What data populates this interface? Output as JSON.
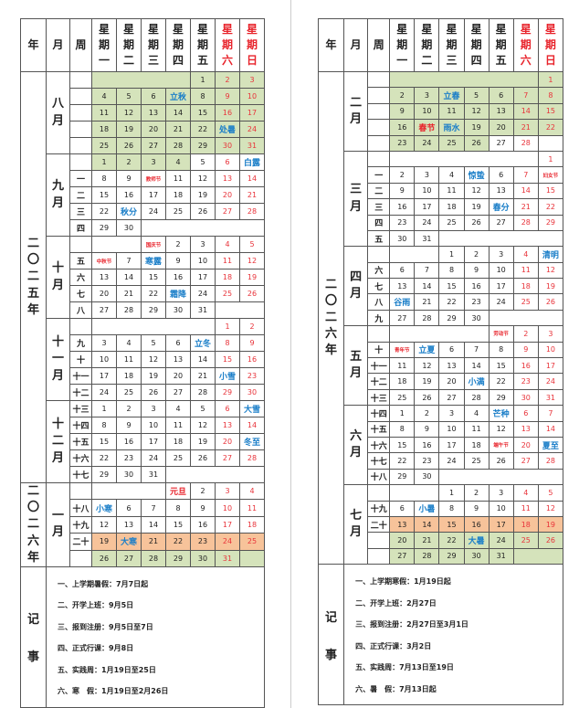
{
  "header": {
    "year": "年",
    "month": "月",
    "week": "周",
    "days": [
      "星期一",
      "星期二",
      "星期三",
      "星期四",
      "星期五",
      "星期六",
      "星期日"
    ]
  },
  "colors": {
    "green": "#d5e3bb",
    "orange": "#f7c39a",
    "red": "#e8333a",
    "blue": "#1a7ec8"
  },
  "left": {
    "year_groups": [
      {
        "label": "二〇二五年",
        "months": [
          {
            "label": "八月",
            "rows": [
              {
                "w": "",
                "d": [
                  null,
                  null,
                  null,
                  null,
                  "1",
                  "2",
                  "3"
                ],
                "bg": "ggggggg"
              },
              {
                "w": "",
                "d": [
                  "4",
                  "5",
                  "6",
                  "立秋",
                  "8",
                  "9",
                  "10"
                ],
                "bg": "ggggggg",
                "st": "...b..."
              },
              {
                "w": "",
                "d": [
                  "11",
                  "12",
                  "13",
                  "14",
                  "15",
                  "16",
                  "17"
                ],
                "bg": "ggggggg"
              },
              {
                "w": "",
                "d": [
                  "18",
                  "19",
                  "20",
                  "21",
                  "22",
                  "处暑",
                  "24"
                ],
                "bg": "ggggggg",
                "st": ".....b."
              },
              {
                "w": "",
                "d": [
                  "25",
                  "26",
                  "27",
                  "28",
                  "29",
                  "30",
                  "31"
                ],
                "bg": "ggggggg"
              }
            ]
          },
          {
            "label": "九月",
            "rows": [
              {
                "w": "",
                "d": [
                  "1",
                  "2",
                  "3",
                  "4",
                  "5",
                  "6",
                  "白露"
                ],
                "bg": "ggggwww",
                "st": "......b"
              },
              {
                "w": "一",
                "d": [
                  "8",
                  "9",
                  "教师节",
                  "11",
                  "12",
                  "13",
                  "14"
                ],
                "st": "..s...."
              },
              {
                "w": "二",
                "d": [
                  "15",
                  "16",
                  "17",
                  "18",
                  "19",
                  "20",
                  "21"
                ]
              },
              {
                "w": "三",
                "d": [
                  "22",
                  "秋分",
                  "24",
                  "25",
                  "26",
                  "27",
                  "28"
                ],
                "st": ".b....."
              },
              {
                "w": "四",
                "d": [
                  "29",
                  "30",
                  null,
                  null,
                  null,
                  null,
                  null
                ]
              }
            ]
          },
          {
            "label": "十月",
            "rows": [
              {
                "w": "",
                "d": [
                  null,
                  null,
                  "国庆节",
                  "2",
                  "3",
                  "4",
                  "5"
                ],
                "st": "..s...."
              },
              {
                "w": "五",
                "d": [
                  "中秋节",
                  "7",
                  "寒露",
                  "9",
                  "10",
                  "11",
                  "12"
                ],
                "st": "s.b...."
              },
              {
                "w": "六",
                "d": [
                  "13",
                  "14",
                  "15",
                  "16",
                  "17",
                  "18",
                  "19"
                ]
              },
              {
                "w": "七",
                "d": [
                  "20",
                  "21",
                  "22",
                  "霜降",
                  "24",
                  "25",
                  "26"
                ],
                "st": "...b..."
              },
              {
                "w": "八",
                "d": [
                  "27",
                  "28",
                  "29",
                  "30",
                  "31",
                  null,
                  null
                ]
              }
            ]
          },
          {
            "label": "十一月",
            "rows": [
              {
                "w": "",
                "d": [
                  null,
                  null,
                  null,
                  null,
                  null,
                  "1",
                  "2"
                ]
              },
              {
                "w": "九",
                "d": [
                  "3",
                  "4",
                  "5",
                  "6",
                  "立冬",
                  "8",
                  "9"
                ],
                "st": "....b.."
              },
              {
                "w": "十",
                "d": [
                  "10",
                  "11",
                  "12",
                  "13",
                  "14",
                  "15",
                  "16"
                ]
              },
              {
                "w": "十一",
                "d": [
                  "17",
                  "18",
                  "19",
                  "20",
                  "21",
                  "小雪",
                  "23"
                ],
                "st": ".....b."
              },
              {
                "w": "十二",
                "d": [
                  "24",
                  "25",
                  "26",
                  "27",
                  "28",
                  "29",
                  "30"
                ]
              }
            ]
          },
          {
            "label": "十二月",
            "rows": [
              {
                "w": "十三",
                "d": [
                  "1",
                  "2",
                  "3",
                  "4",
                  "5",
                  "6",
                  "大雪"
                ],
                "st": "......b"
              },
              {
                "w": "十四",
                "d": [
                  "8",
                  "9",
                  "10",
                  "11",
                  "12",
                  "13",
                  "14"
                ]
              },
              {
                "w": "十五",
                "d": [
                  "15",
                  "16",
                  "17",
                  "18",
                  "19",
                  "20",
                  "冬至"
                ],
                "st": "......b"
              },
              {
                "w": "十六",
                "d": [
                  "22",
                  "23",
                  "24",
                  "25",
                  "26",
                  "27",
                  "28"
                ]
              },
              {
                "w": "十七",
                "d": [
                  "29",
                  "30",
                  "31",
                  null,
                  null,
                  null,
                  null
                ]
              }
            ]
          }
        ]
      },
      {
        "label": "二〇二六年",
        "months": [
          {
            "label": "一月",
            "rows": [
              {
                "w": "",
                "d": [
                  null,
                  null,
                  null,
                  "元旦",
                  "2",
                  "3",
                  "4"
                ],
                "st": "...R..."
              },
              {
                "w": "十八",
                "d": [
                  "小寒",
                  "6",
                  "7",
                  "8",
                  "9",
                  "10",
                  "11"
                ],
                "st": "b......"
              },
              {
                "w": "十九",
                "d": [
                  "12",
                  "13",
                  "14",
                  "15",
                  "16",
                  "17",
                  "18"
                ]
              },
              {
                "w": "二十",
                "d": [
                  "19",
                  "大寒",
                  "21",
                  "22",
                  "23",
                  "24",
                  "25"
                ],
                "bg": "ooooooo",
                "st": ".b....."
              },
              {
                "w": "",
                "d": [
                  "26",
                  "27",
                  "28",
                  "29",
                  "30",
                  "31",
                  null
                ],
                "bg": "ggggggg"
              }
            ]
          }
        ]
      }
    ],
    "notes_label": [
      "记",
      "事"
    ],
    "notes": [
      "一、上学期暑假：7月7日起",
      "二、开学上班：9月5日",
      "三、报到注册：9月5日至7日",
      "四、正式行课：9月8日",
      "五、实践周：1月19日至25日",
      "六、寒　假：1月19日至2月26日"
    ]
  },
  "right": {
    "year_groups": [
      {
        "label": "二〇二六年",
        "months": [
          {
            "label": "二月",
            "rows": [
              {
                "w": "",
                "d": [
                  null,
                  null,
                  null,
                  null,
                  null,
                  null,
                  "1"
                ],
                "bg": "ggggggg"
              },
              {
                "w": "",
                "d": [
                  "2",
                  "3",
                  "立春",
                  "5",
                  "6",
                  "7",
                  "8"
                ],
                "bg": "ggggggg",
                "st": "..b...."
              },
              {
                "w": "",
                "d": [
                  "9",
                  "10",
                  "11",
                  "12",
                  "13",
                  "14",
                  "15"
                ],
                "bg": "ggggggg"
              },
              {
                "w": "",
                "d": [
                  "16",
                  "春节",
                  "雨水",
                  "19",
                  "20",
                  "21",
                  "22"
                ],
                "bg": "ggggggg",
                "st": ".Rb...."
              },
              {
                "w": "",
                "d": [
                  "23",
                  "24",
                  "25",
                  "26",
                  "27",
                  "28",
                  null
                ],
                "bg": "ggggwww"
              }
            ]
          },
          {
            "label": "三月",
            "rows": [
              {
                "w": "",
                "d": [
                  null,
                  null,
                  null,
                  null,
                  null,
                  null,
                  "1"
                ]
              },
              {
                "w": "一",
                "d": [
                  "2",
                  "3",
                  "4",
                  "惊蛰",
                  "6",
                  "7",
                  "妇女节"
                ],
                "st": "...b..s"
              },
              {
                "w": "二",
                "d": [
                  "9",
                  "10",
                  "11",
                  "12",
                  "13",
                  "14",
                  "15"
                ]
              },
              {
                "w": "三",
                "d": [
                  "16",
                  "17",
                  "18",
                  "19",
                  "春分",
                  "21",
                  "22"
                ],
                "st": "....b.."
              },
              {
                "w": "四",
                "d": [
                  "23",
                  "24",
                  "25",
                  "26",
                  "27",
                  "28",
                  "29"
                ]
              },
              {
                "w": "五",
                "d": [
                  "30",
                  "31",
                  null,
                  null,
                  null,
                  null,
                  null
                ]
              }
            ]
          },
          {
            "label": "四月",
            "rows": [
              {
                "w": "",
                "d": [
                  null,
                  null,
                  "1",
                  "2",
                  "3",
                  "4",
                  "清明"
                ],
                "st": "......b"
              },
              {
                "w": "六",
                "d": [
                  "6",
                  "7",
                  "8",
                  "9",
                  "10",
                  "11",
                  "12"
                ]
              },
              {
                "w": "七",
                "d": [
                  "13",
                  "14",
                  "15",
                  "16",
                  "17",
                  "18",
                  "19"
                ]
              },
              {
                "w": "八",
                "d": [
                  "谷雨",
                  "21",
                  "22",
                  "23",
                  "24",
                  "25",
                  "26"
                ],
                "st": "b......"
              },
              {
                "w": "九",
                "d": [
                  "27",
                  "28",
                  "29",
                  "30",
                  null,
                  null,
                  null
                ]
              }
            ]
          },
          {
            "label": "五月",
            "rows": [
              {
                "w": "",
                "d": [
                  null,
                  null,
                  null,
                  null,
                  "劳动节",
                  "2",
                  "3"
                ],
                "st": "....s.."
              },
              {
                "w": "十",
                "d": [
                  "青年节",
                  "立夏",
                  "6",
                  "7",
                  "8",
                  "9",
                  "10"
                ],
                "st": "sb....."
              },
              {
                "w": "十一",
                "d": [
                  "11",
                  "12",
                  "13",
                  "14",
                  "15",
                  "16",
                  "17"
                ]
              },
              {
                "w": "十二",
                "d": [
                  "18",
                  "19",
                  "20",
                  "小满",
                  "22",
                  "23",
                  "24"
                ],
                "st": "...b..."
              },
              {
                "w": "十三",
                "d": [
                  "25",
                  "26",
                  "27",
                  "28",
                  "29",
                  "30",
                  "31"
                ]
              }
            ]
          },
          {
            "label": "六月",
            "rows": [
              {
                "w": "十四",
                "d": [
                  "1",
                  "2",
                  "3",
                  "4",
                  "芒种",
                  "6",
                  "7"
                ],
                "st": "....b.."
              },
              {
                "w": "十五",
                "d": [
                  "8",
                  "9",
                  "10",
                  "11",
                  "12",
                  "13",
                  "14"
                ]
              },
              {
                "w": "十六",
                "d": [
                  "15",
                  "16",
                  "17",
                  "18",
                  "端午节",
                  "20",
                  "夏至"
                ],
                "st": "....s.b"
              },
              {
                "w": "十七",
                "d": [
                  "22",
                  "23",
                  "24",
                  "25",
                  "26",
                  "27",
                  "28"
                ]
              },
              {
                "w": "十八",
                "d": [
                  "29",
                  "30",
                  null,
                  null,
                  null,
                  null,
                  null
                ]
              }
            ]
          },
          {
            "label": "七月",
            "rows": [
              {
                "w": "",
                "d": [
                  null,
                  null,
                  "1",
                  "2",
                  "3",
                  "4",
                  "5"
                ]
              },
              {
                "w": "十九",
                "d": [
                  "6",
                  "小暑",
                  "8",
                  "9",
                  "10",
                  "11",
                  "12"
                ],
                "st": ".b....."
              },
              {
                "w": "二十",
                "d": [
                  "13",
                  "14",
                  "15",
                  "16",
                  "17",
                  "18",
                  "19"
                ],
                "bg": "ooooooo"
              },
              {
                "w": "",
                "d": [
                  "20",
                  "21",
                  "22",
                  "大暑",
                  "24",
                  "25",
                  "26"
                ],
                "bg": "ggggggg",
                "st": "...b..."
              },
              {
                "w": "",
                "d": [
                  "27",
                  "28",
                  "29",
                  "30",
                  "31",
                  null,
                  null
                ],
                "bg": "ggggggg"
              }
            ]
          }
        ]
      }
    ],
    "notes_label": [
      "记",
      "事"
    ],
    "notes": [
      "一、上学期寒假：1月19日起",
      "二、开学上班：2月27日",
      "三、报到注册：2月27日至3月1日",
      "四、正式行课：3月2日",
      "五、实践周：7月13日至19日",
      "六、暑　假：7月13日起"
    ]
  }
}
